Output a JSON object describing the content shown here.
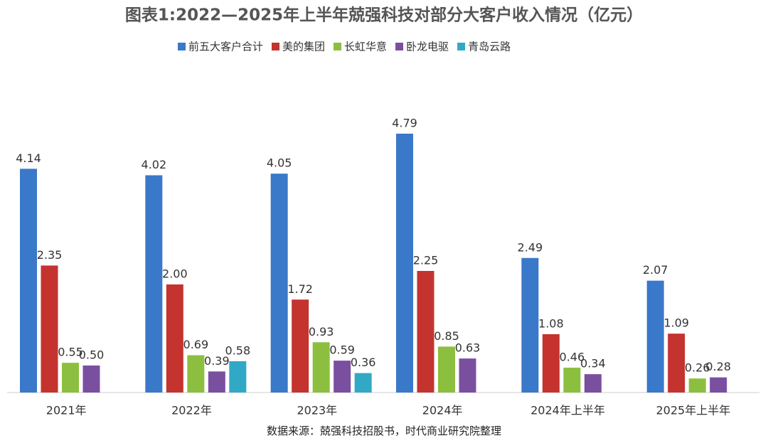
{
  "chart_data": {
    "type": "bar",
    "title": "图表1:2022—2025年上半年兢强科技对部分大客户收入情况（亿元）",
    "source": "数据来源：兢强科技招股书，时代商业研究院整理",
    "categories": [
      "2021年",
      "2022年",
      "2023年",
      "2024年",
      "2024年上半年",
      "2025年上半年"
    ],
    "ylim": [
      0,
      5
    ],
    "legend": "top",
    "series": [
      {
        "name": "前五大客户合计",
        "color": "#3a78c9",
        "values": [
          4.14,
          4.02,
          4.05,
          4.79,
          2.49,
          2.07
        ],
        "value_labels": [
          "4.14",
          "4.02",
          "4.05",
          "4.79",
          "2.49",
          "2.07"
        ]
      },
      {
        "name": "美的集团",
        "color": "#c5332f",
        "values": [
          2.35,
          2.0,
          1.72,
          2.25,
          1.08,
          1.09
        ],
        "value_labels": [
          "2.35",
          "2.00",
          "1.72",
          "2.25",
          "1.08",
          "1.09"
        ]
      },
      {
        "name": "长虹华意",
        "color": "#8cbf3f",
        "values": [
          0.55,
          0.69,
          0.93,
          0.85,
          0.46,
          0.26
        ],
        "value_labels": [
          "0.55",
          "0.69",
          "0.93",
          "0.85",
          "0.46",
          "0.26"
        ]
      },
      {
        "name": "卧龙电驱",
        "color": "#7a4fa0",
        "values": [
          0.5,
          0.39,
          0.59,
          0.63,
          0.34,
          0.28
        ],
        "value_labels": [
          "0.50",
          "0.39",
          "0.59",
          "0.63",
          "0.34",
          "0.28"
        ]
      },
      {
        "name": "青岛云路",
        "color": "#31a9c6",
        "values": [
          null,
          0.58,
          0.36,
          null,
          null,
          null
        ],
        "value_labels": [
          null,
          "0.58",
          "0.36",
          null,
          null,
          null
        ]
      }
    ]
  }
}
